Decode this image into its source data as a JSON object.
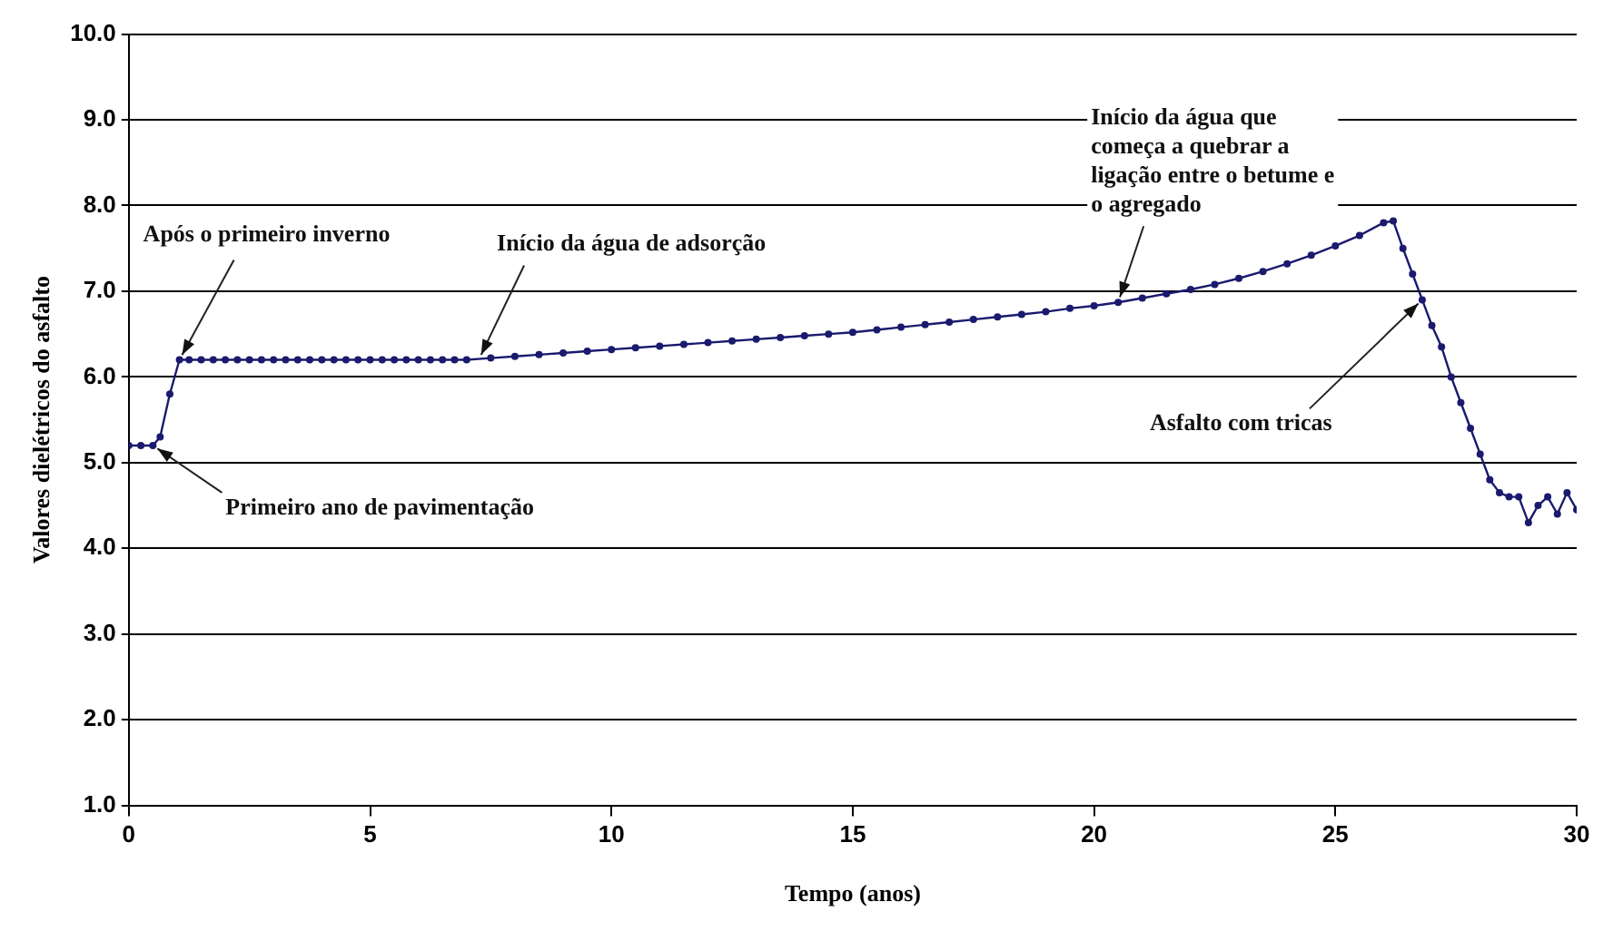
{
  "chart_data": {
    "type": "line",
    "xlabel": "Tempo (anos)",
    "ylabel": "Valores dielétricos do asfalto",
    "x": [
      0,
      0.25,
      0.5,
      0.65,
      0.85,
      1.05,
      1.25,
      1.5,
      1.75,
      2,
      2.25,
      2.5,
      2.75,
      3,
      3.25,
      3.5,
      3.75,
      4,
      4.25,
      4.5,
      4.75,
      5,
      5.25,
      5.5,
      5.75,
      6,
      6.25,
      6.5,
      6.75,
      7,
      7.5,
      8,
      8.5,
      9,
      9.5,
      10,
      10.5,
      11,
      11.5,
      12,
      12.5,
      13,
      13.5,
      14,
      14.5,
      15,
      15.5,
      16,
      16.5,
      17,
      17.5,
      18,
      18.5,
      19,
      19.5,
      20,
      20.5,
      21,
      21.5,
      22,
      22.5,
      23,
      23.5,
      24,
      24.5,
      25,
      25.5,
      26,
      26.2,
      26.4,
      26.6,
      26.8,
      27,
      27.2,
      27.4,
      27.6,
      27.8,
      28,
      28.2,
      28.4,
      28.6,
      28.8,
      29,
      29.2,
      29.4,
      29.6,
      29.8,
      30
    ],
    "series": [
      {
        "color": "#1a1a6e",
        "values": [
          5.2,
          5.2,
          5.2,
          5.3,
          5.8,
          6.2,
          6.2,
          6.2,
          6.2,
          6.2,
          6.2,
          6.2,
          6.2,
          6.2,
          6.2,
          6.2,
          6.2,
          6.2,
          6.2,
          6.2,
          6.2,
          6.2,
          6.2,
          6.2,
          6.2,
          6.2,
          6.2,
          6.2,
          6.2,
          6.2,
          6.22,
          6.24,
          6.26,
          6.28,
          6.3,
          6.32,
          6.34,
          6.36,
          6.38,
          6.4,
          6.42,
          6.44,
          6.46,
          6.48,
          6.5,
          6.52,
          6.55,
          6.58,
          6.61,
          6.64,
          6.67,
          6.7,
          6.73,
          6.76,
          6.8,
          6.83,
          6.87,
          6.92,
          6.97,
          7.02,
          7.08,
          7.15,
          7.23,
          7.32,
          7.42,
          7.53,
          7.65,
          7.8,
          7.82,
          7.5,
          7.2,
          6.9,
          6.6,
          6.35,
          6.0,
          5.7,
          5.4,
          5.1,
          4.8,
          4.65,
          4.6,
          4.6,
          4.3,
          4.5,
          4.6,
          4.4,
          4.65,
          4.45
        ]
      }
    ],
    "xlim": [
      0,
      30
    ],
    "xticks": [
      0,
      5,
      10,
      15,
      20,
      25,
      30
    ],
    "ylim": [
      1,
      10
    ],
    "yticks": [
      {
        "value": 1,
        "label": "1.0"
      },
      {
        "value": 2,
        "label": "2.0"
      },
      {
        "value": 3,
        "label": "3.0"
      },
      {
        "value": 4,
        "label": "4.0"
      },
      {
        "value": 5,
        "label": "5.0"
      },
      {
        "value": 6,
        "label": "6.0"
      },
      {
        "value": 7,
        "label": "7.0"
      },
      {
        "value": 8,
        "label": "8.0"
      },
      {
        "value": 9,
        "label": "9.0"
      },
      {
        "value": 10,
        "label": "10.0"
      }
    ],
    "grid": "y",
    "legend": false,
    "marker": "circle",
    "line_style": "solid",
    "annotations": [
      {
        "text": "Primeiro ano de pavimentação",
        "x": 0.5,
        "y": 5.2
      },
      {
        "text": "Após o primeiro inverno",
        "x": 1.05,
        "y": 6.2
      },
      {
        "text": "Início da água de adsorção",
        "x": 7.25,
        "y": 6.2
      },
      {
        "text": "Início da água que começa a quebrar a ligação entre o betume e o agregado",
        "x": 20.5,
        "y": 6.87
      },
      {
        "text": "Asfalto com tricas",
        "x": 26.8,
        "y": 6.9
      }
    ]
  }
}
